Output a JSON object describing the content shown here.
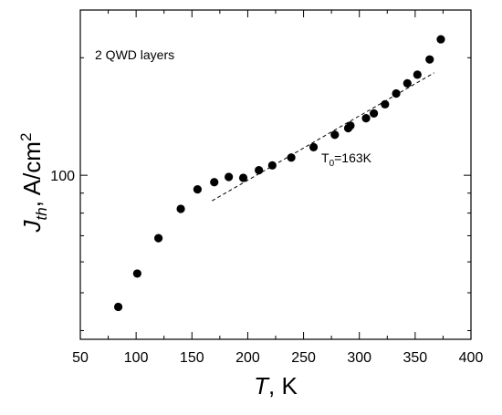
{
  "chart_data": {
    "type": "scatter",
    "title": "",
    "xlabel": {
      "main": "T",
      "suffix": ", K"
    },
    "ylabel": {
      "main": "J",
      "sub": "th",
      "mid": ", A/cm",
      "sup": "2"
    },
    "xlim": [
      50,
      400
    ],
    "x_ticks": [
      50,
      100,
      150,
      200,
      250,
      300,
      350,
      400
    ],
    "y_scale": "log",
    "ylim": [
      38,
      265
    ],
    "y_tick_labels": [
      {
        "value": 100,
        "label": "100"
      }
    ],
    "series": [
      {
        "marker": "filled-circle",
        "color": "#000000",
        "points": [
          [
            84,
            46
          ],
          [
            101,
            56
          ],
          [
            120,
            69
          ],
          [
            140,
            82
          ],
          [
            155,
            92
          ],
          [
            170,
            96
          ],
          [
            183,
            99
          ],
          [
            196,
            98.5
          ],
          [
            210,
            103
          ],
          [
            222,
            106
          ],
          [
            239,
            111
          ],
          [
            259,
            118
          ],
          [
            278,
            127
          ],
          [
            290,
            132
          ],
          [
            292,
            134
          ],
          [
            306,
            140
          ],
          [
            313,
            144
          ],
          [
            323,
            152
          ],
          [
            333,
            162
          ],
          [
            343,
            172
          ],
          [
            352,
            181
          ],
          [
            363,
            198
          ],
          [
            373,
            223
          ]
        ]
      }
    ],
    "fit_line": {
      "style": "dashed",
      "label": "T",
      "label_sub": "0",
      "label_rest": "=163K",
      "points": [
        [
          168,
          86
        ],
        [
          367,
          183
        ]
      ]
    },
    "annotation": "2 QWD layers",
    "grid": false,
    "legend": "none"
  }
}
